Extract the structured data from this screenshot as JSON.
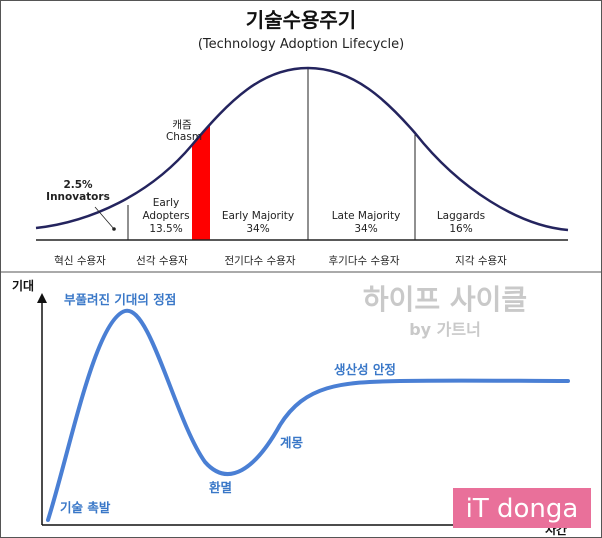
{
  "adoption": {
    "title": "기술수용주기",
    "subtitle": "(Technology Adoption Lifecycle)",
    "chasm_ko": "캐즘",
    "chasm_en": "Chasm",
    "segments": [
      {
        "line1": "2.5%",
        "line2": "Innovators",
        "share": 2.5
      },
      {
        "line1": "Early",
        "line2": "Adopters",
        "line3": "13.5%",
        "share": 13.5
      },
      {
        "line1": "Early Majority",
        "line2": "34%",
        "share": 34
      },
      {
        "line1": "Late Majority",
        "line2": "34%",
        "share": 34
      },
      {
        "line1": "Laggards",
        "line2": "16%",
        "share": 16
      }
    ],
    "bottom_labels": [
      "혁신 수용자",
      "선각 수용자",
      "전기다수 수용자",
      "후기다수 수용자",
      "지각 수용자"
    ],
    "colors": {
      "curve": "#24245e",
      "chasm": "#ff0000",
      "lines": "#222222"
    }
  },
  "hype": {
    "title": "하이프 사이클",
    "byline": "by 가트너",
    "y_axis_label": "기대",
    "x_axis_label": "시간",
    "phases": [
      "기술 촉발",
      "부풀려진 기대의 정점",
      "환멸",
      "계몽",
      "생산성 안정"
    ],
    "colors": {
      "curve": "#4a7fd4",
      "text": "#3a78c8",
      "title": "#c9c9c9"
    }
  },
  "watermark": {
    "text": "iT donga",
    "color": "#e9709a"
  }
}
